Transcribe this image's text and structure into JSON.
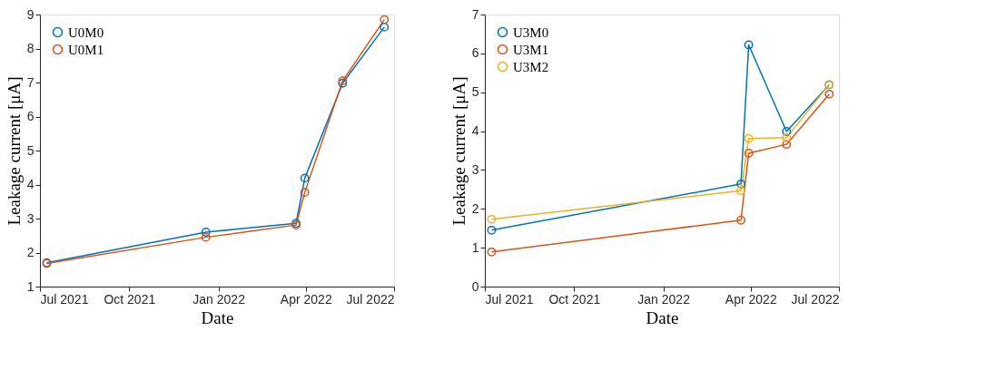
{
  "chart_data": [
    {
      "type": "line",
      "xlabel": "Date",
      "ylabel": "Leakage current [μA]",
      "marker": "circle",
      "line_style": "solid",
      "grid": false,
      "legend": "top left",
      "x": [
        "2021-07-08",
        "2021-12-19",
        "2022-03-22",
        "2022-03-31",
        "2022-05-09",
        "2022-06-21"
      ],
      "xlim": [
        "2021-07-01",
        "2022-07-01"
      ],
      "xticks": [
        {
          "value": "2021-07-01",
          "label": "Jul 2021"
        },
        {
          "value": "2021-10-01",
          "label": "Oct 2021"
        },
        {
          "value": "2022-01-01",
          "label": "Jan 2022"
        },
        {
          "value": "2022-04-01",
          "label": "Apr 2022"
        },
        {
          "value": "2022-07-01",
          "label": "Jul 2022"
        }
      ],
      "ylim": [
        1,
        9
      ],
      "yticks": [
        1,
        2,
        3,
        4,
        5,
        6,
        7,
        8,
        9
      ],
      "series": [
        {
          "name": "U0M0",
          "color": "#0072bd",
          "values": [
            1.7,
            2.6,
            2.86,
            4.19,
            6.98,
            8.63
          ]
        },
        {
          "name": "U0M1",
          "color": "#d95319",
          "values": [
            1.68,
            2.45,
            2.81,
            3.77,
            7.05,
            8.85
          ]
        }
      ]
    },
    {
      "type": "line",
      "xlabel": "Date",
      "ylabel": "Leakage current [μA]",
      "marker": "circle",
      "line_style": "solid",
      "grid": false,
      "legend": "top left",
      "x": [
        "2021-07-08",
        "2022-03-22",
        "2022-03-30",
        "2022-05-08",
        "2022-06-21"
      ],
      "xlim": [
        "2021-07-01",
        "2022-07-01"
      ],
      "xticks": [
        {
          "value": "2021-07-01",
          "label": "Jul 2021"
        },
        {
          "value": "2021-10-01",
          "label": "Oct 2021"
        },
        {
          "value": "2022-01-01",
          "label": "Jan 2022"
        },
        {
          "value": "2022-04-01",
          "label": "Apr 2022"
        },
        {
          "value": "2022-07-01",
          "label": "Jul 2022"
        }
      ],
      "ylim": [
        0,
        7
      ],
      "yticks": [
        0,
        1,
        2,
        3,
        4,
        5,
        6,
        7
      ],
      "series": [
        {
          "name": "U3M0",
          "color": "#0072bd",
          "values": [
            1.45,
            2.64,
            6.22,
            3.99,
            5.19
          ]
        },
        {
          "name": "U3M1",
          "color": "#d95319",
          "values": [
            0.89,
            1.71,
            3.43,
            3.66,
            4.95
          ]
        },
        {
          "name": "U3M2",
          "color": "#edb120",
          "values": [
            1.73,
            2.47,
            3.81,
            3.83,
            5.2
          ]
        }
      ]
    }
  ]
}
